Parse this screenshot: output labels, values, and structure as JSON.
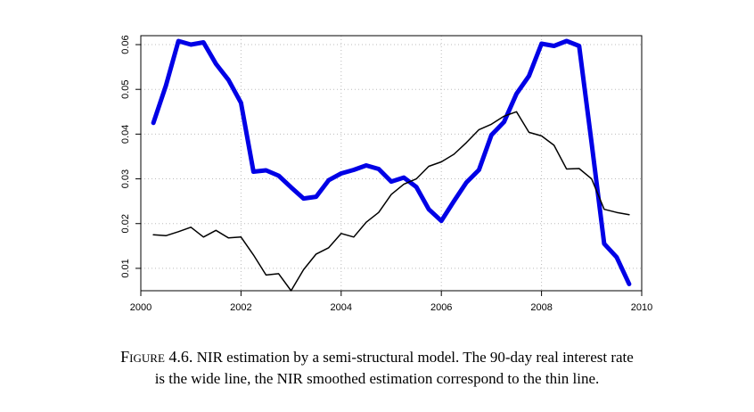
{
  "chart_data": {
    "type": "line",
    "title": "",
    "xlabel": "",
    "ylabel": "",
    "xlim": [
      2000,
      2010
    ],
    "ylim": [
      0.005,
      0.062
    ],
    "x_ticks": [
      "2000",
      "2002",
      "2004",
      "2006",
      "2008",
      "2010"
    ],
    "y_ticks": [
      "0.01",
      "0.02",
      "0.03",
      "0.04",
      "0.05",
      "0.06"
    ],
    "grid": true,
    "series": [
      {
        "color": "#0000e6",
        "x": [
          2000.25,
          2000.5,
          2000.75,
          2001.0,
          2001.25,
          2001.5,
          2001.75,
          2002.0,
          2002.25,
          2002.5,
          2002.75,
          2003.0,
          2003.25,
          2003.5,
          2003.75,
          2004.0,
          2004.25,
          2004.5,
          2004.75,
          2005.0,
          2005.25,
          2005.5,
          2005.75,
          2006.0,
          2006.25,
          2006.5,
          2006.75,
          2007.0,
          2007.25,
          2007.5,
          2007.75,
          2008.0,
          2008.25,
          2008.5,
          2008.75,
          2009.0,
          2009.25,
          2009.5,
          2009.75
        ],
        "y": [
          0.0425,
          0.0508,
          0.0608,
          0.06,
          0.0605,
          0.0557,
          0.0521,
          0.047,
          0.0316,
          0.0319,
          0.0307,
          0.0281,
          0.0256,
          0.026,
          0.0297,
          0.0312,
          0.032,
          0.033,
          0.0322,
          0.0294,
          0.0303,
          0.0282,
          0.0232,
          0.0206,
          0.025,
          0.0292,
          0.032,
          0.0398,
          0.0427,
          0.049,
          0.053,
          0.0602,
          0.0597,
          0.0608,
          0.0597,
          0.038,
          0.0155,
          0.0125,
          0.0065
        ]
      },
      {
        "color": "#000000",
        "x": [
          2000.25,
          2000.5,
          2000.75,
          2001.0,
          2001.25,
          2001.5,
          2001.75,
          2002.0,
          2002.25,
          2002.5,
          2002.75,
          2003.0,
          2003.25,
          2003.5,
          2003.75,
          2004.0,
          2004.25,
          2004.5,
          2004.75,
          2005.0,
          2005.25,
          2005.5,
          2005.75,
          2006.0,
          2006.25,
          2006.5,
          2006.75,
          2007.0,
          2007.25,
          2007.5,
          2007.75,
          2008.0,
          2008.25,
          2008.5,
          2008.75,
          2009.0,
          2009.25,
          2009.5,
          2009.75
        ],
        "y": [
          0.0175,
          0.0173,
          0.0182,
          0.0192,
          0.017,
          0.0185,
          0.0168,
          0.017,
          0.013,
          0.0085,
          0.0088,
          0.005,
          0.0097,
          0.0132,
          0.0146,
          0.0178,
          0.017,
          0.0203,
          0.0225,
          0.0265,
          0.0288,
          0.03,
          0.0328,
          0.0338,
          0.0355,
          0.0381,
          0.041,
          0.0422,
          0.044,
          0.045,
          0.0404,
          0.0396,
          0.0375,
          0.0322,
          0.0323,
          0.03,
          0.0232,
          0.0225,
          0.022
        ]
      }
    ]
  },
  "caption": {
    "figure_label": "Figure 4.6.",
    "line1": "NIR estimation by a semi-structural model. The 90-day real interest rate",
    "line2": "is the wide line, the NIR smoothed estimation correspond to the thin line."
  }
}
